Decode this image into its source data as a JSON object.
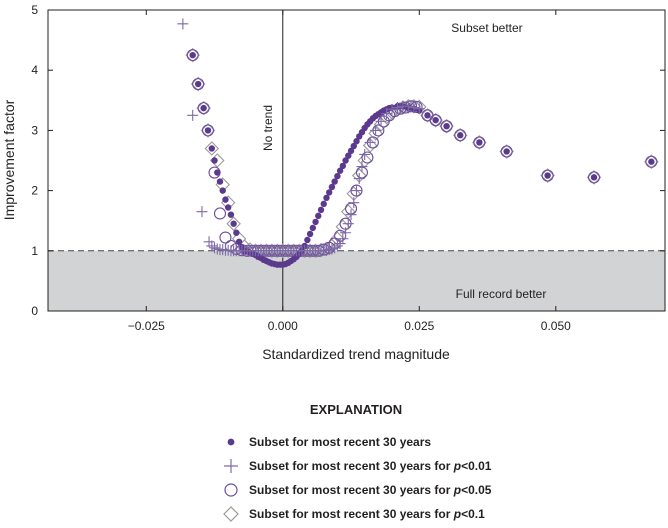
{
  "chart_data": {
    "type": "scatter",
    "xlabel": "Standardized trend magnitude",
    "ylabel": "Improvement factor",
    "xlim": [
      -0.043,
      0.07
    ],
    "ylim": [
      0,
      5
    ],
    "x_ticks": [
      -0.025,
      0.0,
      0.025,
      0.05
    ],
    "x_tick_labels": [
      "−0.025",
      "0.000",
      "0.025",
      "0.050"
    ],
    "y_ticks": [
      0,
      1,
      2,
      3,
      4,
      5
    ],
    "y_tick_labels": [
      "0",
      "1",
      "2",
      "3",
      "4",
      "5"
    ],
    "reference_line": {
      "y": 1,
      "style": "dashed",
      "shaded_below": true,
      "shade_color": "#d1d3d4"
    },
    "vertical_line": {
      "x": 0,
      "label": "No trend"
    },
    "annotations": {
      "upper": "Subset better",
      "lower": "Full record better"
    },
    "legend_title": "EXPLANATION",
    "series": [
      {
        "name": "Subset for most recent 30 years",
        "marker": "filled-circle",
        "color": "#5b3a8e",
        "x": [
          -0.0165,
          -0.0155,
          -0.0145,
          -0.0137,
          -0.013,
          -0.0125,
          -0.012,
          -0.0115,
          -0.011,
          -0.0105,
          -0.01,
          -0.0095,
          -0.009,
          -0.0085,
          -0.008,
          -0.0075,
          -0.007,
          -0.0065,
          -0.006,
          -0.0055,
          -0.005,
          -0.0045,
          -0.004,
          -0.0035,
          -0.003,
          -0.0025,
          -0.002,
          -0.0015,
          -0.001,
          -0.0005,
          0.0,
          0.0005,
          0.001,
          0.0015,
          0.002,
          0.0025,
          0.003,
          0.0035,
          0.004,
          0.0045,
          0.005,
          0.0055,
          0.006,
          0.0065,
          0.007,
          0.0075,
          0.008,
          0.0085,
          0.009,
          0.0095,
          0.01,
          0.0105,
          0.011,
          0.0115,
          0.012,
          0.0125,
          0.013,
          0.0135,
          0.014,
          0.0145,
          0.015,
          0.0155,
          0.016,
          0.0165,
          0.017,
          0.0175,
          0.018,
          0.0185,
          0.019,
          0.0195,
          0.02,
          0.021,
          0.022,
          0.023,
          0.024,
          0.025,
          0.0265,
          0.028,
          0.03,
          0.0325,
          0.036,
          0.041,
          0.0485,
          0.057,
          0.0675
        ],
        "y": [
          4.25,
          3.77,
          3.37,
          3.0,
          2.7,
          2.5,
          2.3,
          2.15,
          2.0,
          1.85,
          1.72,
          1.6,
          1.45,
          1.3,
          1.15,
          1.06,
          1.0,
          0.99,
          0.97,
          0.95,
          0.93,
          0.9,
          0.88,
          0.85,
          0.83,
          0.81,
          0.79,
          0.78,
          0.77,
          0.77,
          0.77,
          0.78,
          0.8,
          0.83,
          0.86,
          0.9,
          0.95,
          1.0,
          1.08,
          1.18,
          1.28,
          1.38,
          1.48,
          1.58,
          1.68,
          1.78,
          1.88,
          1.97,
          2.06,
          2.15,
          2.24,
          2.33,
          2.41,
          2.5,
          2.58,
          2.66,
          2.74,
          2.82,
          2.9,
          2.97,
          3.04,
          3.1,
          3.15,
          3.2,
          3.24,
          3.27,
          3.3,
          3.33,
          3.35,
          3.37,
          3.38,
          3.4,
          3.4,
          3.38,
          3.36,
          3.33,
          3.25,
          3.17,
          3.07,
          2.92,
          2.8,
          2.65,
          2.25,
          2.22,
          2.48
        ]
      },
      {
        "name": "Subset for most recent 30 years for p<0.01",
        "name_prefix": "Subset for most recent 30 years for ",
        "name_italic": "p",
        "name_suffix": "<0.01",
        "marker": "plus",
        "color": "#7e6aa6",
        "x": [
          -0.0183,
          -0.0165,
          -0.0148,
          -0.0135,
          -0.013,
          -0.0125,
          -0.012,
          -0.0115,
          -0.011,
          -0.0105,
          -0.01,
          -0.0095,
          -0.009,
          -0.0085,
          -0.008,
          -0.0075,
          -0.007,
          -0.0065,
          -0.006,
          -0.0055,
          -0.005,
          -0.0045,
          -0.004,
          -0.0035,
          -0.003,
          -0.0025,
          -0.002,
          -0.0015,
          -0.001,
          -0.0005,
          0.0,
          0.0005,
          0.001,
          0.0015,
          0.002,
          0.0025,
          0.003,
          0.0035,
          0.004,
          0.0045,
          0.005,
          0.0055,
          0.006,
          0.0065,
          0.007,
          0.0075,
          0.008,
          0.0085,
          0.009,
          0.0095,
          0.01,
          0.0105,
          0.011,
          0.0115,
          0.012,
          0.0125,
          0.013,
          0.0135,
          0.014,
          0.0145,
          0.015,
          0.016,
          0.017,
          0.018,
          0.019,
          0.02,
          0.021,
          0.022,
          0.023,
          0.024,
          0.025
        ],
        "y": [
          4.77,
          3.25,
          1.65,
          1.15,
          1.08,
          1.05,
          1.03,
          1.02,
          1.02,
          1.01,
          1.01,
          1.0,
          1.0,
          1.0,
          1.0,
          1.0,
          1.0,
          1.0,
          1.0,
          1.0,
          1.0,
          1.0,
          1.0,
          1.0,
          1.0,
          1.0,
          1.0,
          1.0,
          1.0,
          1.0,
          1.0,
          1.0,
          1.0,
          1.0,
          1.0,
          1.0,
          1.0,
          1.0,
          1.0,
          1.0,
          1.0,
          1.0,
          1.0,
          1.0,
          1.0,
          1.01,
          1.01,
          1.02,
          1.03,
          1.05,
          1.08,
          1.12,
          1.2,
          1.3,
          1.45,
          1.6,
          1.8,
          2.0,
          2.2,
          2.4,
          2.6,
          2.8,
          3.0,
          3.15,
          3.28,
          3.35,
          3.38,
          3.4,
          3.4,
          3.38,
          3.36
        ]
      },
      {
        "name": "Subset for most recent 30 years for p<0.05",
        "name_prefix": "Subset for most recent 30 years for ",
        "name_italic": "p",
        "name_suffix": "<0.05",
        "marker": "open-circle",
        "color": "#6d4d9c",
        "x": [
          -0.0165,
          -0.0155,
          -0.0145,
          -0.0137,
          -0.0125,
          -0.0115,
          -0.0105,
          -0.0095,
          -0.0085,
          -0.0075,
          -0.0065,
          -0.0055,
          -0.0045,
          -0.0035,
          -0.0025,
          -0.0015,
          -0.0005,
          0.0005,
          0.0015,
          0.0025,
          0.0035,
          0.0045,
          0.0055,
          0.0065,
          0.0075,
          0.0085,
          0.0095,
          0.0105,
          0.0115,
          0.0125,
          0.0135,
          0.0145,
          0.0155,
          0.0165,
          0.0175,
          0.0185,
          0.0195,
          0.0205,
          0.0215,
          0.0225,
          0.0235,
          0.0245,
          0.0265,
          0.028,
          0.03,
          0.0325,
          0.036,
          0.041,
          0.0485,
          0.057,
          0.0675
        ],
        "y": [
          4.25,
          3.77,
          3.37,
          3.0,
          2.3,
          1.62,
          1.22,
          1.08,
          1.03,
          1.01,
          1.0,
          1.0,
          1.0,
          1.0,
          1.0,
          1.0,
          1.0,
          1.0,
          1.0,
          1.0,
          1.0,
          1.0,
          1.0,
          1.0,
          1.02,
          1.05,
          1.12,
          1.25,
          1.45,
          1.7,
          2.0,
          2.3,
          2.55,
          2.8,
          3.0,
          3.15,
          3.25,
          3.32,
          3.36,
          3.38,
          3.4,
          3.39,
          3.25,
          3.17,
          3.07,
          2.92,
          2.8,
          2.65,
          2.25,
          2.22,
          2.48
        ]
      },
      {
        "name": "Subset for most recent 30 years for p<0.1",
        "name_prefix": "Subset for most recent 30 years for ",
        "name_italic": "p",
        "name_suffix": "<0.1",
        "marker": "open-diamond",
        "color": "#9a9a9a",
        "x": [
          -0.0165,
          -0.0155,
          -0.0145,
          -0.0137,
          -0.013,
          -0.012,
          -0.011,
          -0.01,
          -0.009,
          -0.008,
          -0.007,
          -0.006,
          -0.005,
          -0.004,
          -0.003,
          -0.002,
          -0.001,
          0.0,
          0.001,
          0.002,
          0.003,
          0.004,
          0.005,
          0.006,
          0.007,
          0.008,
          0.009,
          0.01,
          0.011,
          0.012,
          0.013,
          0.014,
          0.015,
          0.016,
          0.017,
          0.018,
          0.019,
          0.02,
          0.021,
          0.022,
          0.023,
          0.024,
          0.025,
          0.0265,
          0.028,
          0.03,
          0.0325,
          0.036,
          0.041,
          0.0485,
          0.057,
          0.0675
        ],
        "y": [
          4.25,
          3.77,
          3.37,
          3.0,
          2.7,
          2.5,
          2.1,
          1.8,
          1.45,
          1.2,
          1.07,
          1.02,
          1.0,
          1.0,
          1.0,
          1.0,
          1.0,
          1.0,
          1.0,
          1.0,
          1.0,
          1.0,
          1.0,
          1.0,
          1.01,
          1.03,
          1.08,
          1.2,
          1.4,
          1.65,
          1.95,
          2.25,
          2.5,
          2.75,
          2.95,
          3.1,
          3.22,
          3.3,
          3.35,
          3.38,
          3.4,
          3.4,
          3.39,
          3.25,
          3.17,
          3.07,
          2.92,
          2.8,
          2.65,
          2.25,
          2.22,
          2.48
        ]
      }
    ]
  }
}
